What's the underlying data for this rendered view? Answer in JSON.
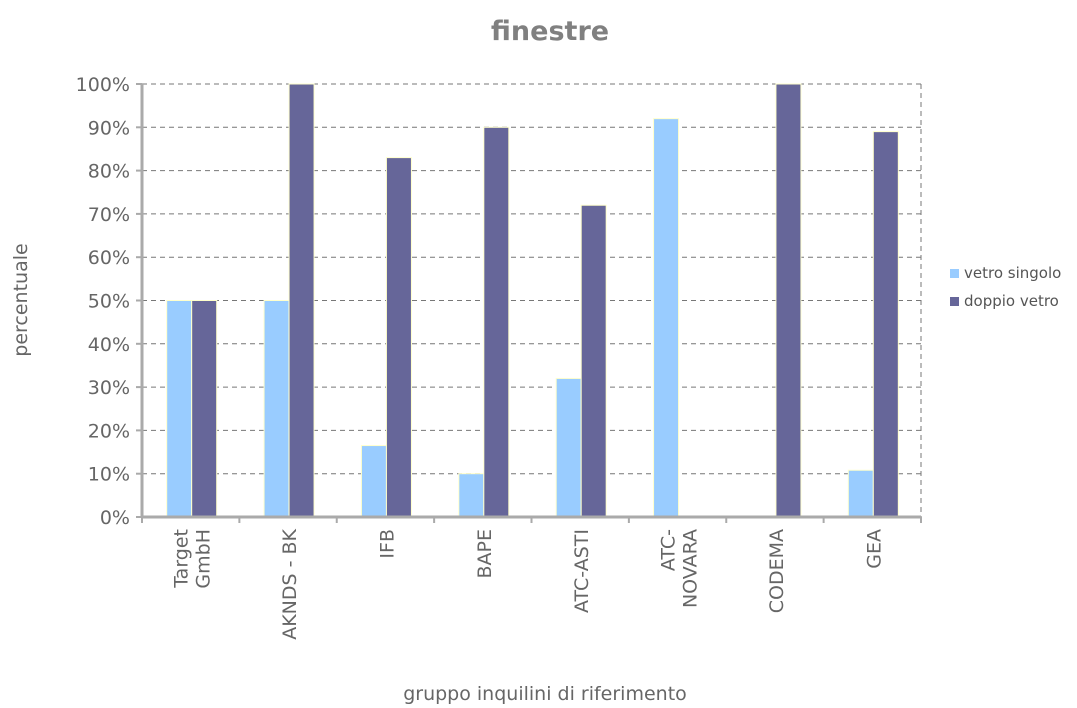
{
  "chart_data": {
    "type": "bar",
    "title": "finestre",
    "xlabel": "gruppo inquilini di riferimento",
    "ylabel": "percentuale",
    "ylim": [
      0,
      100
    ],
    "yticks": [
      "0%",
      "10%",
      "20%",
      "30%",
      "40%",
      "50%",
      "60%",
      "70%",
      "80%",
      "90%",
      "100%"
    ],
    "categories": [
      [
        "Target",
        "GmbH"
      ],
      [
        "AKNDS - BK"
      ],
      [
        "IFB"
      ],
      [
        "BAPE"
      ],
      [
        "ATC-ASTI"
      ],
      [
        "ATC-",
        "NOVARA"
      ],
      [
        "CODEMA"
      ],
      [
        "GEA"
      ]
    ],
    "series": [
      {
        "name": "vetro singolo",
        "color": "#99ccff",
        "values": [
          50,
          50,
          16.5,
          10,
          32,
          92,
          0,
          10.8
        ]
      },
      {
        "name": "doppio vetro",
        "color": "#666699",
        "values": [
          50,
          100,
          83,
          90,
          72,
          0,
          100,
          89
        ]
      }
    ],
    "grid": true,
    "legend": "right"
  }
}
